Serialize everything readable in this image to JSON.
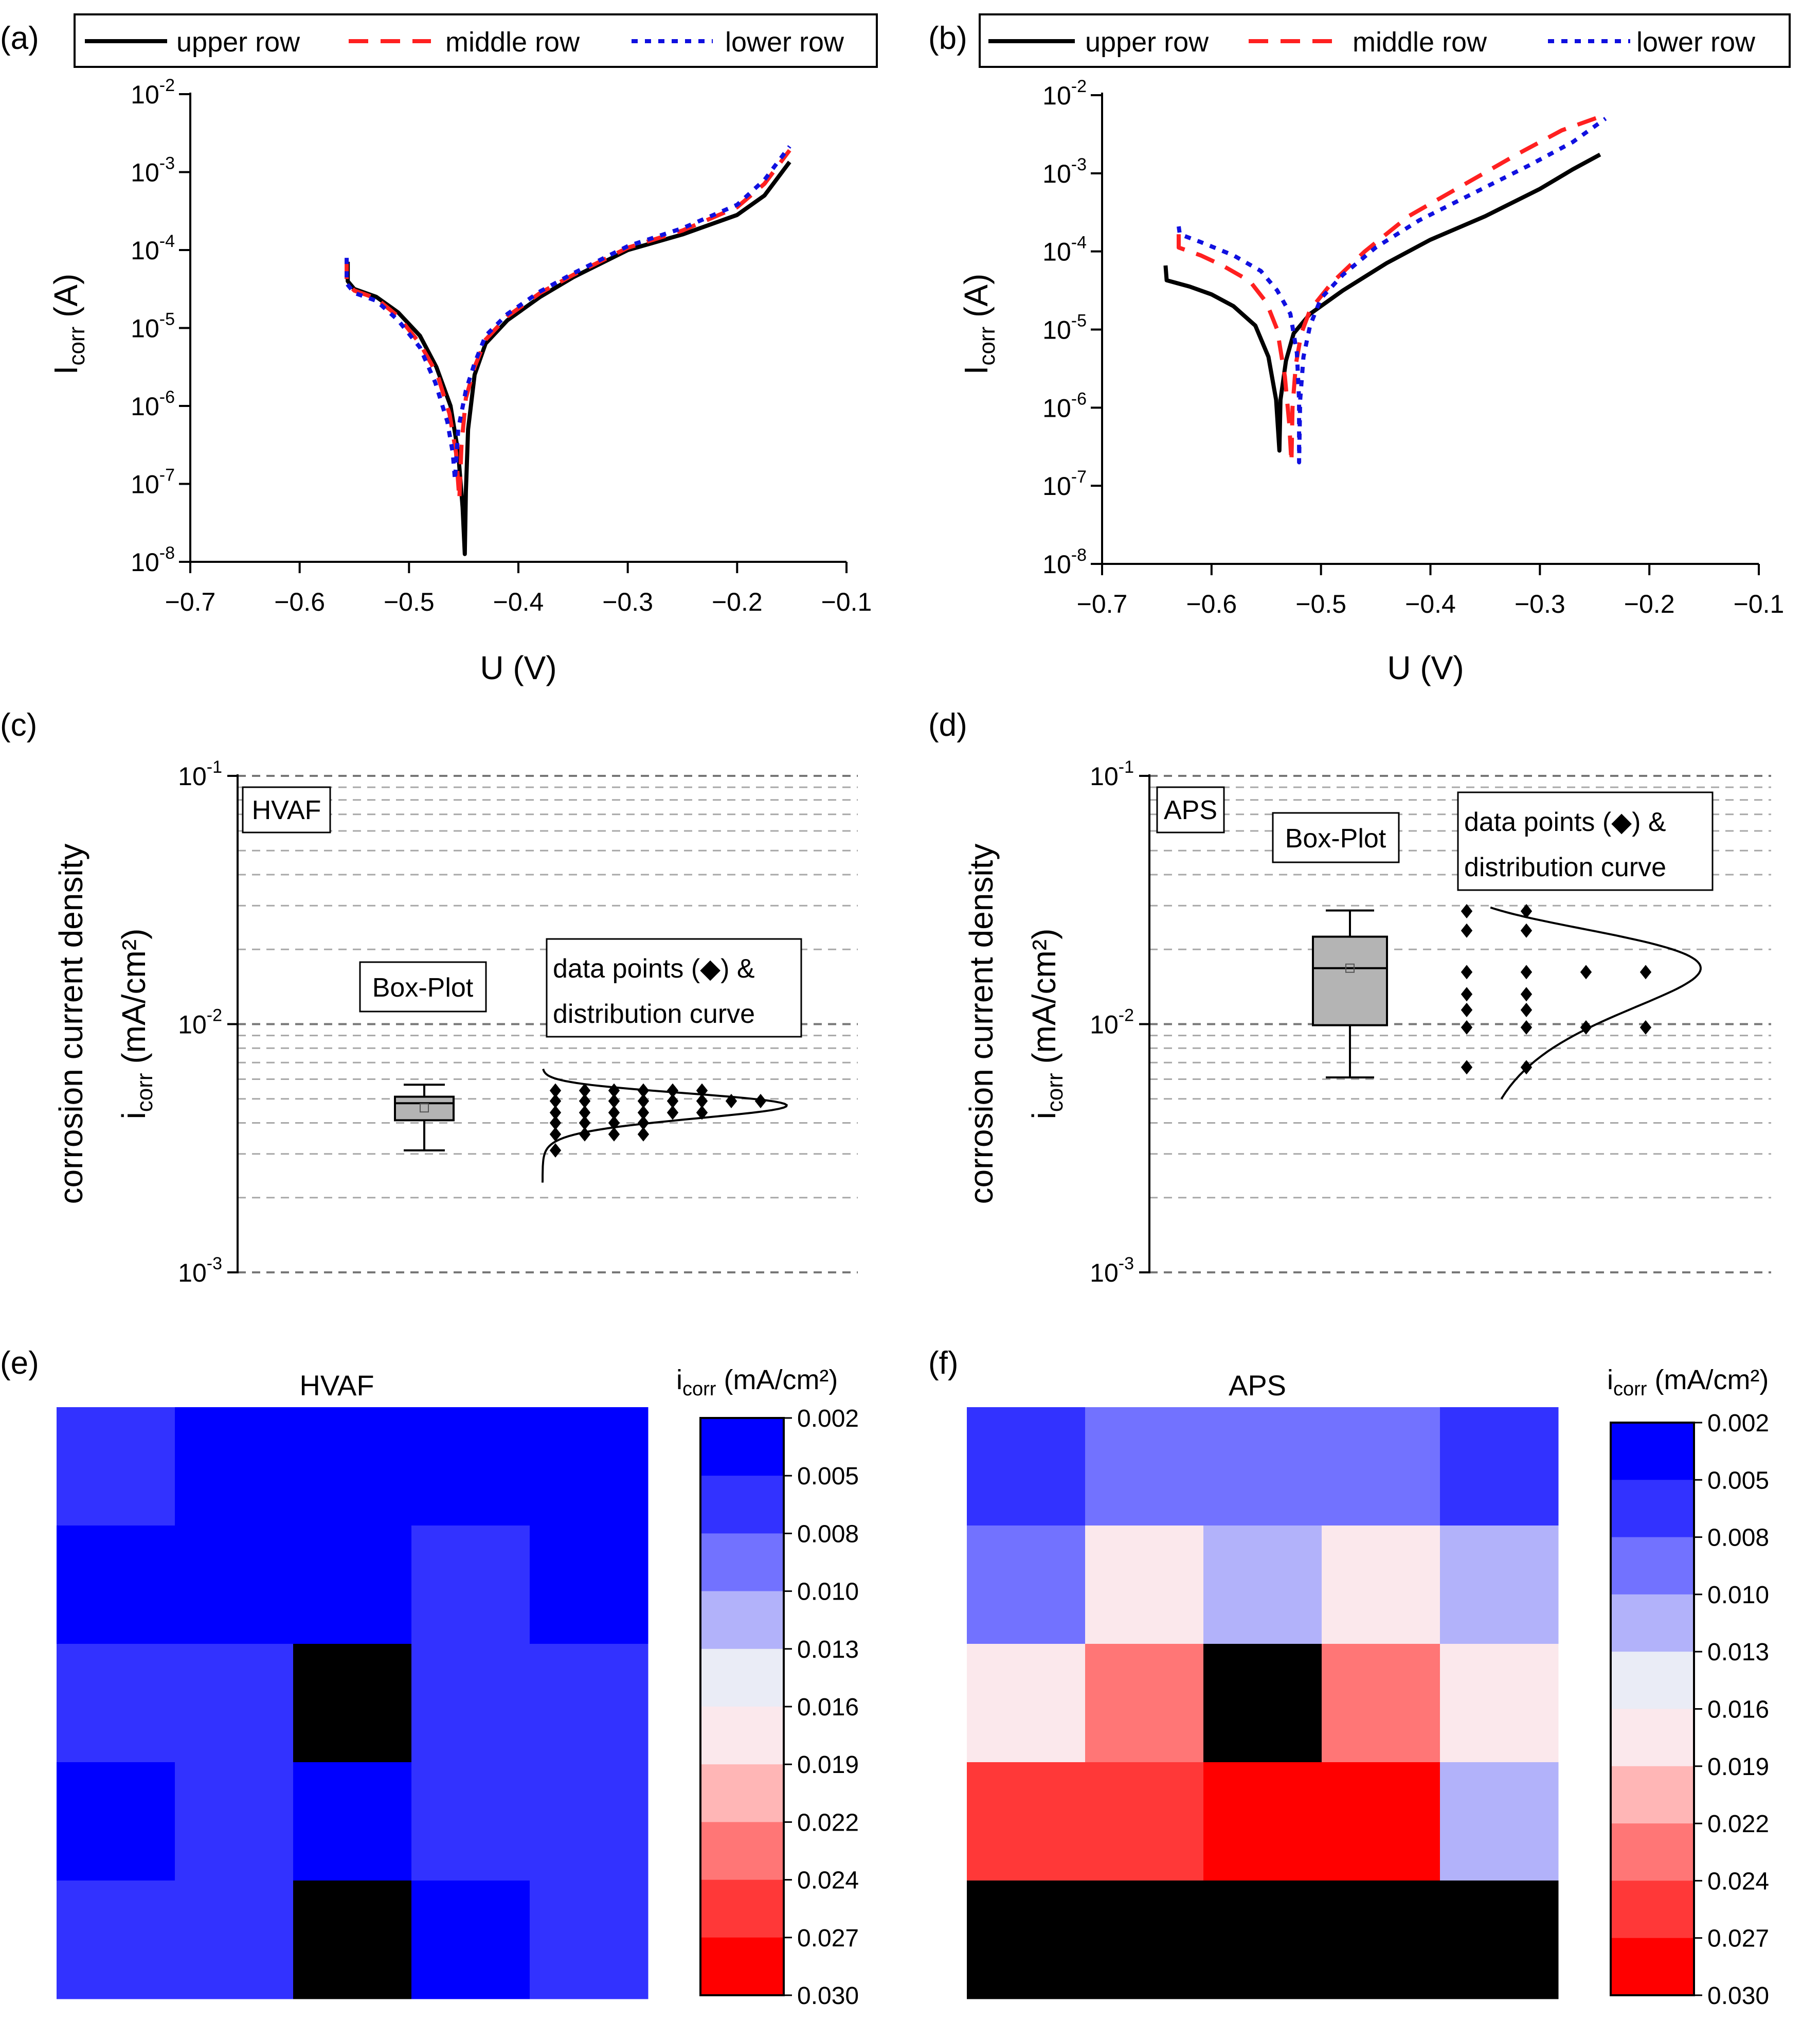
{
  "legend": {
    "upper": "upper row",
    "middle": "middle row",
    "lower": "lower row"
  },
  "colors": {
    "upper": "#000000",
    "middle": "#ff2020",
    "lower": "#1010e0",
    "box_fill": "#b4b4b4",
    "grid": "#a8a8a8"
  },
  "chart_data": [
    {
      "panel": "(a)",
      "type": "line",
      "title": "",
      "xlabel": "U (V)",
      "ylabel_main": "I",
      "ylabel_sub": "corr",
      "ylabel_tail": " (A)",
      "x_ticks": [
        -0.7,
        -0.6,
        -0.5,
        -0.4,
        -0.3,
        -0.2,
        -0.1
      ],
      "x_tick_labels": [
        "−0.7",
        "−0.6",
        "−0.5",
        "−0.4",
        "−0.3",
        "−0.2",
        "−0.1"
      ],
      "y_exponents": [
        -2,
        -3,
        -4,
        -5,
        -6,
        -7,
        -8
      ],
      "y_tick_base": "10",
      "y_tick_exp_labels": [
        "-2",
        "-3",
        "-4",
        "-5",
        "-6",
        "-7",
        "-8"
      ],
      "xlim": [
        -0.7,
        -0.1
      ],
      "ylim_log10": [
        -8,
        -2
      ],
      "legend_labels": [
        "upper row",
        "middle row",
        "lower row"
      ],
      "series": [
        {
          "name": "upper row",
          "style": "solid",
          "cathodic": [
            [
              -0.556,
              -4.15
            ],
            [
              -0.556,
              -4.4
            ],
            [
              -0.55,
              -4.5
            ],
            [
              -0.53,
              -4.6
            ],
            [
              -0.51,
              -4.8
            ],
            [
              -0.49,
              -5.1
            ],
            [
              -0.475,
              -5.5
            ],
            [
              -0.462,
              -6.0
            ],
            [
              -0.455,
              -6.6
            ],
            [
              -0.451,
              -7.3
            ],
            [
              -0.449,
              -7.9
            ]
          ],
          "anodic": [
            [
              -0.449,
              -7.9
            ],
            [
              -0.448,
              -7.1
            ],
            [
              -0.446,
              -6.3
            ],
            [
              -0.44,
              -5.6
            ],
            [
              -0.43,
              -5.2
            ],
            [
              -0.41,
              -4.9
            ],
            [
              -0.38,
              -4.6
            ],
            [
              -0.35,
              -4.35
            ],
            [
              -0.3,
              -4.0
            ],
            [
              -0.25,
              -3.8
            ],
            [
              -0.2,
              -3.55
            ],
            [
              -0.175,
              -3.3
            ],
            [
              -0.152,
              -2.87
            ]
          ]
        },
        {
          "name": "middle row",
          "style": "dashed",
          "cathodic": [
            [
              -0.557,
              -4.12
            ],
            [
              -0.557,
              -4.42
            ],
            [
              -0.55,
              -4.52
            ],
            [
              -0.53,
              -4.62
            ],
            [
              -0.51,
              -4.85
            ],
            [
              -0.49,
              -5.2
            ],
            [
              -0.474,
              -5.6
            ],
            [
              -0.463,
              -6.1
            ],
            [
              -0.457,
              -6.6
            ],
            [
              -0.454,
              -7.2
            ]
          ],
          "anodic": [
            [
              -0.454,
              -7.2
            ],
            [
              -0.452,
              -6.5
            ],
            [
              -0.448,
              -5.9
            ],
            [
              -0.44,
              -5.5
            ],
            [
              -0.43,
              -5.15
            ],
            [
              -0.41,
              -4.85
            ],
            [
              -0.38,
              -4.55
            ],
            [
              -0.35,
              -4.32
            ],
            [
              -0.3,
              -3.97
            ],
            [
              -0.25,
              -3.75
            ],
            [
              -0.2,
              -3.45
            ],
            [
              -0.175,
              -3.15
            ],
            [
              -0.152,
              -2.72
            ]
          ]
        },
        {
          "name": "lower row",
          "style": "dotted",
          "cathodic": [
            [
              -0.557,
              -4.1
            ],
            [
              -0.557,
              -4.43
            ],
            [
              -0.55,
              -4.55
            ],
            [
              -0.53,
              -4.65
            ],
            [
              -0.51,
              -4.9
            ],
            [
              -0.49,
              -5.25
            ],
            [
              -0.476,
              -5.7
            ],
            [
              -0.465,
              -6.2
            ],
            [
              -0.46,
              -6.6
            ],
            [
              -0.458,
              -6.95
            ]
          ],
          "anodic": [
            [
              -0.458,
              -6.95
            ],
            [
              -0.455,
              -6.3
            ],
            [
              -0.448,
              -5.8
            ],
            [
              -0.44,
              -5.45
            ],
            [
              -0.43,
              -5.1
            ],
            [
              -0.41,
              -4.82
            ],
            [
              -0.38,
              -4.53
            ],
            [
              -0.35,
              -4.3
            ],
            [
              -0.3,
              -3.95
            ],
            [
              -0.25,
              -3.72
            ],
            [
              -0.2,
              -3.42
            ],
            [
              -0.175,
              -3.1
            ],
            [
              -0.152,
              -2.67
            ]
          ]
        }
      ]
    },
    {
      "panel": "(b)",
      "type": "line",
      "title": "",
      "xlabel": "U (V)",
      "ylabel_main": "I",
      "ylabel_sub": "corr",
      "ylabel_tail": " (A)",
      "x_ticks": [
        -0.7,
        -0.6,
        -0.5,
        -0.4,
        -0.3,
        -0.2,
        -0.1
      ],
      "x_tick_labels": [
        "−0.7",
        "−0.6",
        "−0.5",
        "−0.4",
        "−0.3",
        "−0.2",
        "−0.1"
      ],
      "y_exponents": [
        -2,
        -3,
        -4,
        -5,
        -6,
        -7,
        -8
      ],
      "y_tick_base": "10",
      "y_tick_exp_labels": [
        "-2",
        "-3",
        "-4",
        "-5",
        "-6",
        "-7",
        "-8"
      ],
      "xlim": [
        -0.7,
        -0.1
      ],
      "ylim_log10": [
        -8,
        -2
      ],
      "legend_labels": [
        "upper row",
        "middle row",
        "lower row"
      ],
      "series": [
        {
          "name": "upper row",
          "style": "solid",
          "cathodic": [
            [
              -0.642,
              -4.18
            ],
            [
              -0.641,
              -4.37
            ],
            [
              -0.62,
              -4.45
            ],
            [
              -0.6,
              -4.55
            ],
            [
              -0.58,
              -4.7
            ],
            [
              -0.56,
              -4.95
            ],
            [
              -0.548,
              -5.35
            ],
            [
              -0.541,
              -5.9
            ],
            [
              -0.538,
              -6.55
            ]
          ],
          "anodic": [
            [
              -0.538,
              -6.55
            ],
            [
              -0.537,
              -5.9
            ],
            [
              -0.532,
              -5.4
            ],
            [
              -0.525,
              -5.05
            ],
            [
              -0.51,
              -4.8
            ],
            [
              -0.48,
              -4.5
            ],
            [
              -0.44,
              -4.15
            ],
            [
              -0.4,
              -3.85
            ],
            [
              -0.35,
              -3.55
            ],
            [
              -0.3,
              -3.2
            ],
            [
              -0.27,
              -2.95
            ],
            [
              -0.245,
              -2.76
            ]
          ]
        },
        {
          "name": "middle row",
          "style": "dashed",
          "cathodic": [
            [
              -0.63,
              -3.78
            ],
            [
              -0.63,
              -3.95
            ],
            [
              -0.61,
              -4.05
            ],
            [
              -0.59,
              -4.18
            ],
            [
              -0.565,
              -4.38
            ],
            [
              -0.55,
              -4.65
            ],
            [
              -0.54,
              -5.0
            ],
            [
              -0.533,
              -5.6
            ],
            [
              -0.529,
              -6.2
            ],
            [
              -0.527,
              -6.7
            ]
          ],
          "anodic": [
            [
              -0.527,
              -6.7
            ],
            [
              -0.526,
              -6.0
            ],
            [
              -0.523,
              -5.45
            ],
            [
              -0.518,
              -5.05
            ],
            [
              -0.51,
              -4.75
            ],
            [
              -0.49,
              -4.4
            ],
            [
              -0.46,
              -4.0
            ],
            [
              -0.42,
              -3.55
            ],
            [
              -0.37,
              -3.15
            ],
            [
              -0.32,
              -2.75
            ],
            [
              -0.28,
              -2.45
            ],
            [
              -0.24,
              -2.25
            ]
          ]
        },
        {
          "name": "lower row",
          "style": "dotted",
          "cathodic": [
            [
              -0.63,
              -3.68
            ],
            [
              -0.629,
              -3.78
            ],
            [
              -0.61,
              -3.88
            ],
            [
              -0.58,
              -4.05
            ],
            [
              -0.555,
              -4.25
            ],
            [
              -0.54,
              -4.5
            ],
            [
              -0.528,
              -4.8
            ],
            [
              -0.522,
              -5.3
            ],
            [
              -0.52,
              -5.9
            ],
            [
              -0.52,
              -6.7
            ]
          ],
          "anodic": [
            [
              -0.52,
              -6.7
            ],
            [
              -0.519,
              -5.9
            ],
            [
              -0.516,
              -5.35
            ],
            [
              -0.51,
              -4.95
            ],
            [
              -0.5,
              -4.6
            ],
            [
              -0.48,
              -4.3
            ],
            [
              -0.45,
              -3.95
            ],
            [
              -0.41,
              -3.6
            ],
            [
              -0.36,
              -3.25
            ],
            [
              -0.31,
              -2.9
            ],
            [
              -0.27,
              -2.6
            ],
            [
              -0.24,
              -2.3
            ]
          ]
        }
      ]
    },
    {
      "panel": "(c)",
      "type": "box",
      "title": "",
      "ylabel_line1": "corrosion current density",
      "ylabel_main": "i",
      "ylabel_sub": "corr",
      "ylabel_tail": " (mA/cm²)",
      "y_tick_base": "10",
      "y_tick_exp_labels": [
        "-1",
        "-2",
        "-3"
      ],
      "ylim": [
        0.001,
        0.1
      ],
      "label_material": "HVAF",
      "label_box": "Box-Plot",
      "label_data_1": "data points (◆) &",
      "label_data_2": "distribution curve",
      "box": {
        "min": 0.0031,
        "q1": 0.0041,
        "median": 0.0048,
        "q3": 0.0051,
        "max": 0.0057,
        "mean": 0.0046
      },
      "dot_rows": [
        {
          "value": 0.0054,
          "count": 6
        },
        {
          "value": 0.0049,
          "count": 8
        },
        {
          "value": 0.0044,
          "count": 6
        },
        {
          "value": 0.004,
          "count": 4
        },
        {
          "value": 0.0036,
          "count": 4
        },
        {
          "value": 0.0031,
          "count": 1
        }
      ],
      "curve": {
        "mu": 0.0047,
        "sigma": 0.00055,
        "ymin": 0.0023,
        "ymax": 0.0066
      }
    },
    {
      "panel": "(d)",
      "type": "box",
      "title": "",
      "ylabel_line1": "corrosion current density",
      "ylabel_main": "i",
      "ylabel_sub": "corr",
      "ylabel_tail": " (mA/cm²)",
      "y_tick_base": "10",
      "y_tick_exp_labels": [
        "-1",
        "-2",
        "-3"
      ],
      "ylim": [
        0.001,
        0.1
      ],
      "label_material": "APS",
      "label_box": "Box-Plot",
      "label_data_1": "data points (◆) &",
      "label_data_2": "distribution curve",
      "box": {
        "min": 0.0061,
        "q1": 0.0099,
        "median": 0.0168,
        "q3": 0.0225,
        "max": 0.0287,
        "mean": 0.0168
      },
      "dot_rows": [
        {
          "value": 0.0285,
          "count": 2
        },
        {
          "value": 0.0238,
          "count": 2
        },
        {
          "value": 0.0162,
          "count": 4
        },
        {
          "value": 0.0132,
          "count": 2
        },
        {
          "value": 0.0114,
          "count": 2
        },
        {
          "value": 0.0097,
          "count": 4
        },
        {
          "value": 0.0067,
          "count": 2
        }
      ],
      "curve": {
        "mu": 0.0168,
        "sigma": 0.0065,
        "ymin": 0.005,
        "ymax": 0.0295
      }
    },
    {
      "panel": "(e)",
      "type": "heatmap",
      "title": "HVAF",
      "colorbar_label_main": "i",
      "colorbar_label_sub": "corr",
      "colorbar_label_tail": " (mA/cm²)",
      "colorbar_ticks": [
        "0.002",
        "0.005",
        "0.008",
        "0.010",
        "0.013",
        "0.016",
        "0.019",
        "0.022",
        "0.024",
        "0.027",
        "0.030"
      ],
      "grid": [
        [
          0.005,
          0.002,
          0.002,
          0.002,
          0.002
        ],
        [
          0.002,
          0.002,
          0.002,
          0.005,
          0.002
        ],
        [
          0.005,
          0.005,
          null,
          0.005,
          0.005
        ],
        [
          0.002,
          0.005,
          0.002,
          0.005,
          0.005
        ],
        [
          0.005,
          0.005,
          null,
          0.002,
          0.005
        ]
      ]
    },
    {
      "panel": "(f)",
      "type": "heatmap",
      "title": "APS",
      "colorbar_label_main": "i",
      "colorbar_label_sub": "corr",
      "colorbar_label_tail": " (mA/cm²)",
      "colorbar_ticks": [
        "0.002",
        "0.005",
        "0.008",
        "0.010",
        "0.013",
        "0.016",
        "0.019",
        "0.022",
        "0.024",
        "0.027",
        "0.030"
      ],
      "grid": [
        [
          0.005,
          0.008,
          0.008,
          0.008,
          0.005
        ],
        [
          0.01,
          0.016,
          0.013,
          0.016,
          0.013
        ],
        [
          0.016,
          0.024,
          null,
          0.024,
          0.016
        ],
        [
          0.027,
          0.027,
          0.03,
          0.03,
          0.013
        ],
        [
          null,
          null,
          null,
          null,
          null
        ]
      ]
    }
  ],
  "colorbar_colors": [
    "#0000ff",
    "#3232ff",
    "#7272ff",
    "#b2b2fa",
    "#eaecf6",
    "#fbe8ec",
    "#ffb6b6",
    "#ff7676",
    "#ff3838",
    "#ff0000"
  ]
}
